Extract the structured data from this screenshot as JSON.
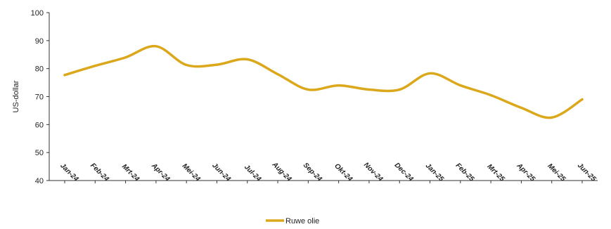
{
  "chart_data": {
    "type": "line",
    "title": "",
    "xlabel": "",
    "ylabel": "US-dollar",
    "ylim": [
      40,
      100
    ],
    "yticks": [
      40,
      50,
      60,
      70,
      80,
      90,
      100
    ],
    "grid": false,
    "legend_position": "bottom",
    "categories": [
      "Jan-24",
      "Feb-24",
      "Mrt-24",
      "Apr-24",
      "Mei-24",
      "Jun-24",
      "Jul-24",
      "Aug-24",
      "Sep-24",
      "Okt-24",
      "Nov-24",
      "Dec-24",
      "Jan-25",
      "Feb-25",
      "Mrt-25",
      "Apr-25",
      "Mei-25",
      "Jun-25"
    ],
    "series": [
      {
        "name": "Ruwe olie",
        "color": "#DBA81C",
        "values": [
          77.7,
          81.0,
          84.0,
          88.0,
          81.3,
          81.4,
          83.3,
          78.0,
          72.5,
          74.0,
          72.5,
          72.5,
          78.3,
          74.0,
          70.5,
          66.0,
          62.5,
          69.0
        ]
      }
    ]
  }
}
